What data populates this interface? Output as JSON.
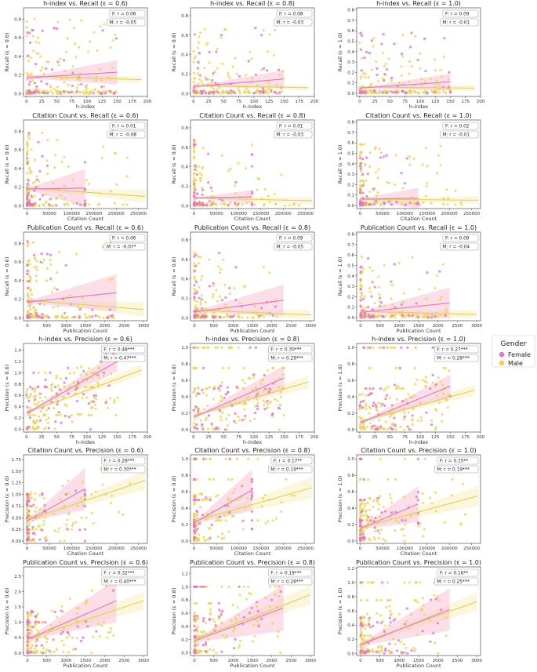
{
  "legend": {
    "title": "Gender",
    "entries": [
      {
        "label": "Female",
        "color": "#e377c2"
      },
      {
        "label": "Male",
        "color": "#e8d35a"
      }
    ]
  },
  "colors": {
    "female": "#e377c2",
    "male": "#e8d35a",
    "female_band": "#f8c3d6",
    "male_band": "#f7efbf"
  },
  "chart_data": [
    {
      "type": "scatter",
      "title": "h-index vs. Recall (ε = 0.6)",
      "xlabel": "h-index",
      "ylabel": "Recall (ε = 0.6)",
      "xlim": [
        -5,
        200
      ],
      "ylim": [
        -0.03,
        0.92
      ],
      "xticks": [
        0,
        25,
        50,
        75,
        100,
        125,
        150,
        175,
        200
      ],
      "yticks": [
        0.0,
        0.2,
        0.4,
        0.6,
        0.8
      ],
      "x_max": {
        "female": 150,
        "male": 190
      },
      "female": {
        "r": "F: r = 0.06",
        "y0": 0.17,
        "y1": 0.23,
        "ci": 0.13
      },
      "male": {
        "r": "M: r = -0.05",
        "y0": 0.19,
        "y1": 0.15,
        "ci": 0.04
      },
      "spread": "recall",
      "yscale": 0.55
    },
    {
      "type": "scatter",
      "title": "h-index vs. Recall (ε = 0.8)",
      "xlabel": "h-index",
      "ylabel": "Recall (ε = 0.8)",
      "xlim": [
        -5,
        200
      ],
      "ylim": [
        -0.03,
        0.88
      ],
      "xticks": [
        0,
        25,
        50,
        75,
        100,
        125,
        150,
        175,
        200
      ],
      "yticks": [
        0.0,
        0.2,
        0.4,
        0.6,
        0.8
      ],
      "x_max": {
        "female": 150,
        "male": 190
      },
      "female": {
        "r": "F: r = 0.08",
        "y0": 0.07,
        "y1": 0.15,
        "ci": 0.09
      },
      "male": {
        "r": "M: r = -0.03",
        "y0": 0.08,
        "y1": 0.06,
        "ci": 0.03
      },
      "spread": "recall",
      "yscale": 0.45
    },
    {
      "type": "scatter",
      "title": "h-index vs. Recall (ε = 1.0)",
      "xlabel": "h-index",
      "ylabel": "Recall (ε = 1.0)",
      "xlim": [
        -5,
        200
      ],
      "ylim": [
        -0.03,
        0.82
      ],
      "xticks": [
        0,
        25,
        50,
        75,
        100,
        125,
        150,
        175,
        200
      ],
      "yticks": [
        0.0,
        0.1,
        0.2,
        0.3,
        0.4,
        0.5,
        0.6,
        0.7,
        0.8
      ],
      "x_max": {
        "female": 150,
        "male": 190
      },
      "female": {
        "r": "F: r = 0.09",
        "y0": 0.05,
        "y1": 0.11,
        "ci": 0.08
      },
      "male": {
        "r": "M: r = -0.01",
        "y0": 0.06,
        "y1": 0.05,
        "ci": 0.03
      },
      "spread": "recall",
      "yscale": 0.4
    },
    {
      "type": "scatter",
      "title": "Citation Count vs. Recall (ε = 0.6)",
      "xlabel": "Citation Count",
      "ylabel": "Recall (ε = 0.6)",
      "xlim": [
        -8000,
        270000
      ],
      "ylim": [
        -0.03,
        0.92
      ],
      "xticks": [
        0,
        50000,
        100000,
        150000,
        200000,
        250000
      ],
      "yticks": [
        0.0,
        0.2,
        0.4,
        0.6,
        0.8
      ],
      "x_max": {
        "female": 130000,
        "male": 265000
      },
      "female": {
        "r": "F: r = 0.01",
        "y0": 0.18,
        "y1": 0.19,
        "ci": 0.2
      },
      "male": {
        "r": "M: r = -0.08",
        "y0": 0.19,
        "y1": 0.1,
        "ci": 0.07
      },
      "spread": "citation",
      "yscale": 0.55
    },
    {
      "type": "scatter",
      "title": "Citation Count vs. Recall (ε = 0.8)",
      "xlabel": "Citation Count",
      "ylabel": "Recall (ε = 0.8)",
      "xlim": [
        -8000,
        270000
      ],
      "ylim": [
        -0.03,
        0.88
      ],
      "xticks": [
        0,
        50000,
        100000,
        150000,
        200000,
        250000
      ],
      "yticks": [
        0.0,
        0.2,
        0.4,
        0.6,
        0.8
      ],
      "x_max": {
        "female": 130000,
        "male": 265000
      },
      "female": {
        "r": "F: r = 0.01",
        "y0": 0.08,
        "y1": 0.09,
        "ci": 0.07
      },
      "male": {
        "r": "M: r = -0.03",
        "y0": 0.08,
        "y1": 0.05,
        "ci": 0.04
      },
      "spread": "citation",
      "yscale": 0.45
    },
    {
      "type": "scatter",
      "title": "Citation Count vs. Recall (ε = 1.0)",
      "xlabel": "Citation Count",
      "ylabel": "Recall (ε = 1.0)",
      "xlim": [
        -8000,
        270000
      ],
      "ylim": [
        -0.03,
        0.82
      ],
      "xticks": [
        0,
        50000,
        100000,
        150000,
        200000,
        250000
      ],
      "yticks": [
        0.0,
        0.1,
        0.2,
        0.3,
        0.4,
        0.5,
        0.6,
        0.7,
        0.8
      ],
      "x_max": {
        "female": 130000,
        "male": 265000
      },
      "female": {
        "r": "F: r = 0.02",
        "y0": 0.06,
        "y1": 0.07,
        "ci": 0.1
      },
      "male": {
        "r": "M: r = -0.01",
        "y0": 0.06,
        "y1": 0.05,
        "ci": 0.04
      },
      "spread": "citation",
      "yscale": 0.4
    },
    {
      "type": "scatter",
      "title": "Publication Count vs. Recall (ε = 0.6)",
      "xlabel": "Publication Count",
      "ylabel": "Recall (ε = 0.6)",
      "xlim": [
        -100,
        3100
      ],
      "ylim": [
        -0.03,
        0.92
      ],
      "xticks": [
        0,
        500,
        1000,
        1500,
        2000,
        2500,
        3000
      ],
      "yticks": [
        0.0,
        0.2,
        0.4,
        0.6,
        0.8
      ],
      "x_max": {
        "female": 2300,
        "male": 3000
      },
      "female": {
        "r": "F: r = 0.06",
        "y0": 0.17,
        "y1": 0.27,
        "ci": 0.2
      },
      "male": {
        "r": "M: r = -0.07*",
        "y0": 0.19,
        "y1": 0.09,
        "ci": 0.08
      },
      "spread": "pub",
      "yscale": 0.55
    },
    {
      "type": "scatter",
      "title": "Publication Count vs. Recall (ε = 0.8)",
      "xlabel": "Publication Count",
      "ylabel": "Recall (ε = 0.8)",
      "xlim": [
        -100,
        3100
      ],
      "ylim": [
        -0.03,
        0.88
      ],
      "xticks": [
        0,
        500,
        1000,
        1500,
        2000,
        2500,
        3000
      ],
      "yticks": [
        0.0,
        0.2,
        0.4,
        0.6,
        0.8
      ],
      "x_max": {
        "female": 2300,
        "male": 3000
      },
      "female": {
        "r": "F: r = 0.09",
        "y0": 0.06,
        "y1": 0.18,
        "ci": 0.16
      },
      "male": {
        "r": "M: r = -0.05",
        "y0": 0.08,
        "y1": 0.03,
        "ci": 0.05
      },
      "spread": "pub",
      "yscale": 0.45
    },
    {
      "type": "scatter",
      "title": "Publication Count vs. Recall (ε = 1.0)",
      "xlabel": "Publication Count",
      "ylabel": "Recall (ε = 1.0)",
      "xlim": [
        -100,
        3100
      ],
      "ylim": [
        -0.03,
        0.82
      ],
      "xticks": [
        0,
        500,
        1000,
        1500,
        2000,
        2500,
        3000
      ],
      "yticks": [
        0.0,
        0.1,
        0.2,
        0.3,
        0.4,
        0.5,
        0.6,
        0.7,
        0.8
      ],
      "x_max": {
        "female": 2300,
        "male": 3000
      },
      "female": {
        "r": "F: r = 0.09",
        "y0": 0.05,
        "y1": 0.14,
        "ci": 0.15
      },
      "male": {
        "r": "M: r = -0.04",
        "y0": 0.06,
        "y1": 0.03,
        "ci": 0.04
      },
      "spread": "pub",
      "yscale": 0.4
    },
    {
      "type": "scatter",
      "title": "h-index vs. Precision (ε = 0.6)",
      "xlabel": "h-index",
      "ylabel": "Precision (ε = 0.6)",
      "xlim": [
        -5,
        200
      ],
      "ylim": [
        -0.05,
        1.52
      ],
      "xticks": [
        0,
        25,
        50,
        75,
        100,
        125,
        150,
        175,
        200
      ],
      "yticks": [
        0.0,
        0.2,
        0.4,
        0.6,
        0.8,
        1.0,
        1.2,
        1.4
      ],
      "x_max": {
        "female": 150,
        "male": 190
      },
      "female": {
        "r": "F: r = 0.48***",
        "y0": 0.28,
        "y1": 1.2,
        "ci": 0.18
      },
      "male": {
        "r": "M: r = 0.47***",
        "y0": 0.29,
        "y1": 1.05,
        "ci": 0.1
      },
      "spread": "hindex",
      "yscale": 1.0
    },
    {
      "type": "scatter",
      "title": "h-index vs. Precision (ε = 0.8)",
      "xlabel": "h-index",
      "ylabel": "Precision (ε = 0.8)",
      "xlim": [
        -5,
        200
      ],
      "ylim": [
        -0.03,
        1.05
      ],
      "xticks": [
        0,
        25,
        50,
        75,
        100,
        125,
        150,
        175,
        200
      ],
      "yticks": [
        0.0,
        0.2,
        0.4,
        0.6,
        0.8,
        1.0
      ],
      "x_max": {
        "female": 150,
        "male": 190
      },
      "female": {
        "r": "F: r = 0.30***",
        "y0": 0.15,
        "y1": 0.63,
        "ci": 0.15
      },
      "male": {
        "r": "M: r = 0.29***",
        "y0": 0.17,
        "y1": 0.58,
        "ci": 0.08
      },
      "spread": "hindex",
      "yscale": 1.0
    },
    {
      "type": "scatter",
      "title": "h-index vs. Precision (ε = 1.0)",
      "xlabel": "h-index",
      "ylabel": "Precision (ε = 1.0)",
      "xlim": [
        -5,
        200
      ],
      "ylim": [
        -0.03,
        1.05
      ],
      "xticks": [
        0,
        25,
        50,
        75,
        100,
        125,
        150,
        175,
        200
      ],
      "yticks": [
        0.0,
        0.2,
        0.4,
        0.6,
        0.8,
        1.0
      ],
      "x_max": {
        "female": 150,
        "male": 190
      },
      "female": {
        "r": "F: r = 0.27***",
        "y0": 0.08,
        "y1": 0.53,
        "ci": 0.14
      },
      "male": {
        "r": "M: r = 0.28***",
        "y0": 0.1,
        "y1": 0.48,
        "ci": 0.07
      },
      "spread": "hindex",
      "yscale": 1.0
    },
    {
      "type": "scatter",
      "title": "Citation Count vs. Precision (ε = 0.6)",
      "xlabel": "Citation Count",
      "ylabel": "Precision (ε = 0.6)",
      "xlim": [
        -8000,
        270000
      ],
      "ylim": [
        -0.05,
        1.85
      ],
      "xticks": [
        0,
        50000,
        100000,
        150000,
        200000,
        250000
      ],
      "yticks": [
        0.0,
        0.25,
        0.5,
        0.75,
        1.0,
        1.25,
        1.5,
        1.75
      ],
      "x_max": {
        "female": 130000,
        "male": 265000
      },
      "female": {
        "r": "F: r = 0.28***",
        "y0": 0.43,
        "y1": 1.12,
        "ci": 0.45
      },
      "male": {
        "r": "M: r = 0.30***",
        "y0": 0.45,
        "y1": 1.3,
        "ci": 0.2
      },
      "spread": "citation",
      "yscale": 1.0
    },
    {
      "type": "scatter",
      "title": "Citation Count vs. Precision (ε = 0.8)",
      "xlabel": "Citation Count",
      "ylabel": "Precision (ε = 0.8)",
      "xlim": [
        -8000,
        270000
      ],
      "ylim": [
        -0.03,
        1.05
      ],
      "xticks": [
        0,
        50000,
        100000,
        150000,
        200000,
        250000
      ],
      "yticks": [
        0.0,
        0.2,
        0.4,
        0.6,
        0.8,
        1.0
      ],
      "x_max": {
        "female": 130000,
        "male": 265000
      },
      "female": {
        "r": "F: r = 0.17**",
        "y0": 0.22,
        "y1": 0.62,
        "ci": 0.25
      },
      "male": {
        "r": "M: r = 0.19***",
        "y0": 0.24,
        "y1": 0.65,
        "ci": 0.13
      },
      "spread": "citation",
      "yscale": 1.0
    },
    {
      "type": "scatter",
      "title": "Citation Count vs. Precision (ε = 1.0)",
      "xlabel": "Citation Count",
      "ylabel": "Precision (ε = 1.0)",
      "xlim": [
        -8000,
        270000
      ],
      "ylim": [
        -0.03,
        1.05
      ],
      "xticks": [
        0,
        50000,
        100000,
        150000,
        200000,
        250000
      ],
      "yticks": [
        0.0,
        0.2,
        0.4,
        0.6,
        0.8,
        1.0
      ],
      "x_max": {
        "female": 130000,
        "male": 265000
      },
      "female": {
        "r": "F: r = 0.15**",
        "y0": 0.15,
        "y1": 0.45,
        "ci": 0.22
      },
      "male": {
        "r": "M: r = 0.19***",
        "y0": 0.16,
        "y1": 0.55,
        "ci": 0.12
      },
      "spread": "citation",
      "yscale": 1.0
    },
    {
      "type": "scatter",
      "title": "Publication Count vs. Precision (ε = 0.6)",
      "xlabel": "Publication Count",
      "ylabel": "Precision (ε = 0.6)",
      "xlim": [
        -100,
        3100
      ],
      "ylim": [
        -0.08,
        2.8
      ],
      "xticks": [
        0,
        500,
        1000,
        1500,
        2000,
        2500,
        3000
      ],
      "yticks": [
        0.0,
        0.5,
        1.0,
        1.5,
        2.0,
        2.5
      ],
      "x_max": {
        "female": 2300,
        "male": 3000
      },
      "female": {
        "r": "F: r = 0.32***",
        "y0": 0.45,
        "y1": 1.7,
        "ci": 0.7
      },
      "male": {
        "r": "M: r = 0.40***",
        "y0": 0.46,
        "y1": 1.7,
        "ci": 0.3
      },
      "spread": "pub",
      "yscale": 1.0
    },
    {
      "type": "scatter",
      "title": "Publication Count vs. Precision (ε = 0.8)",
      "xlabel": "Publication Count",
      "ylabel": "Precision (ε = 0.8)",
      "xlim": [
        -100,
        3100
      ],
      "ylim": [
        -0.04,
        1.3
      ],
      "xticks": [
        0,
        500,
        1000,
        1500,
        2000,
        2500,
        3000
      ],
      "yticks": [
        0.0,
        0.2,
        0.4,
        0.6,
        0.8,
        1.0,
        1.2
      ],
      "x_max": {
        "female": 2300,
        "male": 3000
      },
      "female": {
        "r": "F: r = 0.19***",
        "y0": 0.18,
        "y1": 0.68,
        "ci": 0.35
      },
      "male": {
        "r": "M: r = 0.26***",
        "y0": 0.2,
        "y1": 0.88,
        "ci": 0.15
      },
      "spread": "pub",
      "yscale": 1.0
    },
    {
      "type": "scatter",
      "title": "Publication Count vs. Precision (ε = 1.0)",
      "xlabel": "Publication Count",
      "ylabel": "Precision (ε = 1.0)",
      "xlim": [
        -100,
        3100
      ],
      "ylim": [
        -0.03,
        1.22
      ],
      "xticks": [
        0,
        500,
        1000,
        1500,
        2000,
        2500,
        3000
      ],
      "yticks": [
        0.0,
        0.2,
        0.4,
        0.6,
        0.8,
        1.0,
        1.2
      ],
      "x_max": {
        "female": 2300,
        "male": 3000
      },
      "female": {
        "r": "F: r = 0.16**",
        "y0": 0.12,
        "y1": 0.62,
        "ci": 0.3
      },
      "male": {
        "r": "M: r = 0.25***",
        "y0": 0.14,
        "y1": 0.73,
        "ci": 0.13
      },
      "spread": "pub",
      "yscale": 1.0
    }
  ]
}
